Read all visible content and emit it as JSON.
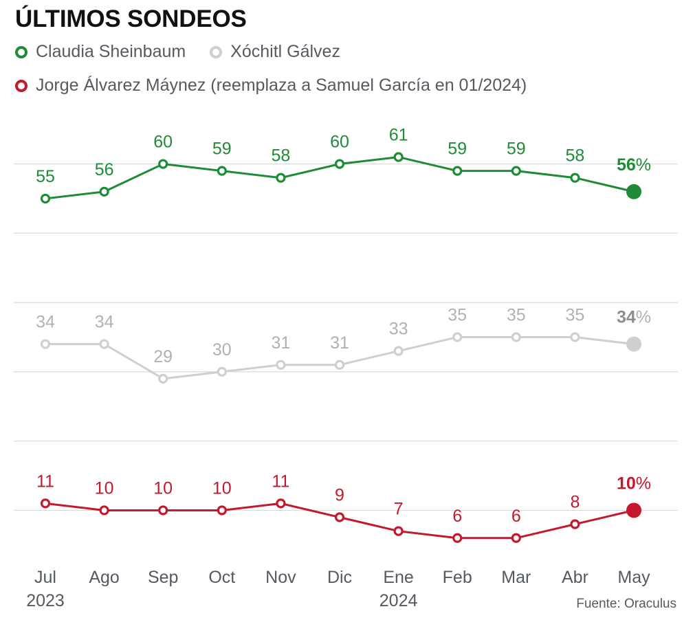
{
  "title": "ÚLTIMOS SONDEOS",
  "source": "Fuente: Oraculus",
  "chart_data": {
    "type": "line",
    "title": "ÚLTIMOS SONDEOS",
    "categories": [
      "Jul",
      "Ago",
      "Sep",
      "Oct",
      "Nov",
      "Dic",
      "Ene",
      "Feb",
      "Mar",
      "Abr",
      "May"
    ],
    "year_labels": [
      {
        "category": "Jul",
        "label": "2023"
      },
      {
        "category": "Ene",
        "label": "2024"
      }
    ],
    "last_value_suffix": "%",
    "series": [
      {
        "name": "Claudia Sheinbaum",
        "color": "#1e8c36",
        "values": [
          55,
          56,
          60,
          59,
          58,
          60,
          61,
          59,
          59,
          58,
          56
        ]
      },
      {
        "name": "Xóchitl Gálvez",
        "color": "#cfcfcf",
        "label_color": "#aeb2b6",
        "last_label_color": "#8a8e93",
        "values": [
          34,
          34,
          29,
          30,
          31,
          31,
          33,
          35,
          35,
          35,
          34
        ]
      },
      {
        "name": "Jorge Álvarez Máynez (reemplaza a Samuel García en 01/2024)",
        "color": "#c4182c",
        "values": [
          11,
          10,
          10,
          10,
          11,
          9,
          7,
          6,
          6,
          8,
          10
        ]
      }
    ],
    "ylim": [
      3,
      67
    ],
    "grid": true,
    "legend_position": "top-left"
  }
}
